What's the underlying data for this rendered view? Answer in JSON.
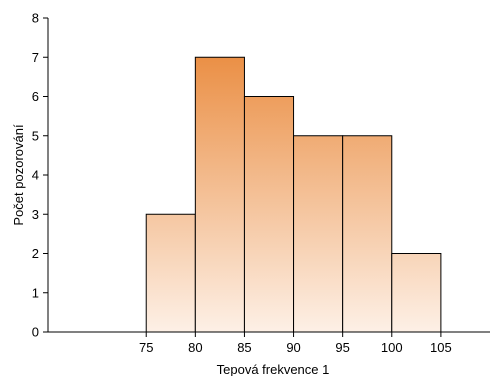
{
  "chart_data": {
    "type": "bar",
    "subtype": "histogram",
    "title": "",
    "xlabel": "Tepová frekvence 1",
    "ylabel": "Počet pozorování",
    "bins": [
      {
        "from": 75,
        "to": 80,
        "count": 3
      },
      {
        "from": 80,
        "to": 85,
        "count": 7
      },
      {
        "from": 85,
        "to": 90,
        "count": 6
      },
      {
        "from": 90,
        "to": 95,
        "count": 5
      },
      {
        "from": 95,
        "to": 100,
        "count": 5
      },
      {
        "from": 100,
        "to": 105,
        "count": 2
      }
    ],
    "x_ticks": [
      75,
      80,
      85,
      90,
      95,
      100,
      105
    ],
    "y_ticks": [
      0,
      1,
      2,
      3,
      4,
      5,
      6,
      7,
      8
    ],
    "xlim": [
      65,
      110
    ],
    "ylim": [
      0,
      8
    ],
    "grid": false,
    "legend": "none",
    "colors": {
      "bar_top": "#e8822f",
      "bar_bottom": "#fdf0e6",
      "bar_stroke": "#000000",
      "axis": "#000000"
    }
  }
}
